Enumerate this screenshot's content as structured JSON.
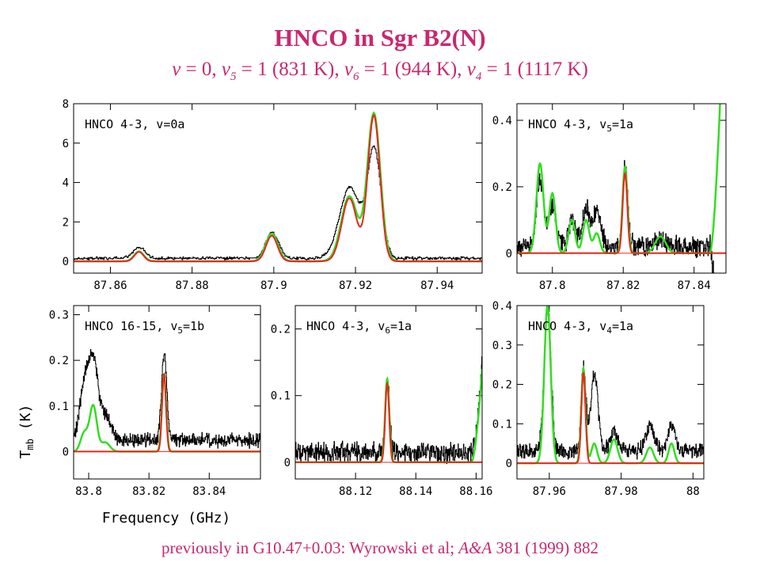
{
  "header": {
    "title": "HNCO in Sgr B2(N)",
    "subtitle": {
      "v": "v",
      "v0": " = 0, ",
      "sub5": "5",
      "t5": " = 1 (831 K), ",
      "sub6": "6",
      "t6": " = 1 (944 K), ",
      "sub4": "4",
      "t4": " = 1 (1117 K)"
    }
  },
  "footer": {
    "pre": "previously in G10.47+0.03: Wyrowski et al; ",
    "journal": "A&A",
    "post": " 381 (1999) 882"
  },
  "figure": {
    "ylabel_main": "T",
    "ylabel_sub": "mb",
    "ylabel_unit": " (K)",
    "xlabel": "Frequency (GHz)"
  },
  "colors": {
    "observed": "#000000",
    "model_total": "#33dd22",
    "model_component": "#e8261c",
    "text": "#c8286e"
  },
  "chart_data": [
    {
      "id": "p1",
      "type": "line",
      "label": "HNCO 4-3, v=0a",
      "xlim": [
        87.851,
        87.951
      ],
      "ylim": [
        -0.6,
        8
      ],
      "xticks": [
        87.86,
        87.88,
        87.9,
        87.92,
        87.94
      ],
      "xticklabels": [
        "87.86",
        "87.88",
        "87.9",
        "87.92",
        "87.94"
      ],
      "yticks": [
        0,
        2,
        4,
        6,
        8
      ],
      "yticklabels": [
        "0",
        "2",
        "4",
        "6",
        "8"
      ],
      "zeroline": false,
      "noise": 0.06,
      "lines": [
        {
          "center": 87.867,
          "width": 0.0012,
          "obs": 0.55,
          "total": 0.5,
          "comp": 0.48
        },
        {
          "center": 87.8995,
          "width": 0.0015,
          "obs": 1.3,
          "total": 1.4,
          "comp": 1.3
        },
        {
          "center": 87.9185,
          "width": 0.002,
          "obs": 3.6,
          "total": 3.3,
          "comp": 3.2
        },
        {
          "center": 87.9245,
          "width": 0.0016,
          "obs": 5.5,
          "total": 7.5,
          "comp": 7.4
        }
      ],
      "obs_baseline": 0.15
    },
    {
      "id": "p2",
      "type": "line",
      "label": "HNCO 4-3, v5=1a",
      "xlim": [
        87.79,
        87.849
      ],
      "ylim": [
        -0.06,
        0.45
      ],
      "xticks": [
        87.8,
        87.82,
        87.84
      ],
      "xticklabels": [
        "87.8",
        "87.82",
        "87.84"
      ],
      "yticks": [
        0,
        0.2,
        0.4
      ],
      "yticklabels": [
        "0",
        "0.2",
        "0.4"
      ],
      "zeroline": true,
      "noise": 0.025,
      "lines": [
        {
          "center": 87.7965,
          "width": 0.001,
          "obs": 0.2,
          "total": 0.27,
          "comp": 0
        },
        {
          "center": 87.8,
          "width": 0.0009,
          "obs": 0.12,
          "total": 0.18,
          "comp": 0
        },
        {
          "center": 87.8055,
          "width": 0.0009,
          "obs": 0.08,
          "total": 0.1,
          "comp": 0
        },
        {
          "center": 87.8095,
          "width": 0.0009,
          "obs": 0.11,
          "total": 0.1,
          "comp": 0
        },
        {
          "center": 87.8125,
          "width": 0.0009,
          "obs": 0.1,
          "total": 0.06,
          "comp": 0
        },
        {
          "center": 87.8205,
          "width": 0.0007,
          "obs": 0.24,
          "total": 0.26,
          "comp": 0.24
        },
        {
          "center": 87.8305,
          "width": 0.0015,
          "obs": 0.02,
          "total": 0.05,
          "comp": 0
        }
      ],
      "rise": {
        "x0": 87.8445,
        "total_to": 0.95,
        "obs_dip": -0.12
      },
      "obs_baseline": 0.02
    },
    {
      "id": "p3",
      "type": "line",
      "label": "HNCO 16-15, v5=1b",
      "xlim": [
        83.795,
        83.857
      ],
      "ylim": [
        -0.06,
        0.32
      ],
      "xticks": [
        83.8,
        83.82,
        83.84
      ],
      "xticklabels": [
        "83.8",
        "83.82",
        "83.84"
      ],
      "yticks": [
        0,
        0.1,
        0.2,
        0.3
      ],
      "yticklabels": [
        "0",
        "0.1",
        "0.2",
        "0.3"
      ],
      "zeroline": true,
      "noise": 0.012,
      "lines": [
        {
          "center": 83.7985,
          "width": 0.0012,
          "obs": 0.12,
          "total": 0.04,
          "comp": 0
        },
        {
          "center": 83.8015,
          "width": 0.0012,
          "obs": 0.17,
          "total": 0.1,
          "comp": 0
        },
        {
          "center": 83.8055,
          "width": 0.0015,
          "obs": 0.05,
          "total": 0.02,
          "comp": 0
        },
        {
          "center": 83.825,
          "width": 0.0007,
          "obs": 0.19,
          "total": 0.17,
          "comp": 0.17
        }
      ],
      "obs_baseline": 0.025
    },
    {
      "id": "p4",
      "type": "line",
      "label": "HNCO 4-3, v6=1a",
      "xlim": [
        88.1,
        88.162
      ],
      "ylim": [
        -0.025,
        0.235
      ],
      "xticks": [
        88.12,
        88.14,
        88.16
      ],
      "xticklabels": [
        "88.12",
        "88.14",
        "88.16"
      ],
      "yticks": [
        0,
        0.1,
        0.2
      ],
      "yticklabels": [
        "0",
        "0.1",
        "0.2"
      ],
      "zeroline": true,
      "noise": 0.012,
      "lines": [
        {
          "center": 88.1305,
          "width": 0.0007,
          "obs": 0.11,
          "total": 0.125,
          "comp": 0.118
        }
      ],
      "rise": {
        "x0": 88.1585,
        "total_to": 0.14,
        "obs_dip": 0
      },
      "obs_baseline": 0.015
    },
    {
      "id": "p5",
      "type": "line",
      "label": "HNCO 4-3, v4=1a",
      "xlim": [
        87.951,
        88.003
      ],
      "ylim": [
        -0.04,
        0.4
      ],
      "xticks": [
        87.96,
        87.98,
        88
      ],
      "xticklabels": [
        "87.96",
        "87.98",
        "88"
      ],
      "yticks": [
        0,
        0.1,
        0.2,
        0.3,
        0.4
      ],
      "yticklabels": [
        "0",
        "0.1",
        "0.2",
        "0.3",
        "0.4"
      ],
      "zeroline": true,
      "noise": 0.015,
      "lines": [
        {
          "center": 87.9595,
          "width": 0.0009,
          "obs": 0.37,
          "total": 0.4,
          "comp": 0
        },
        {
          "center": 87.9695,
          "width": 0.0006,
          "obs": 0.22,
          "total": 0.24,
          "comp": 0.23
        },
        {
          "center": 87.9725,
          "width": 0.0008,
          "obs": 0.2,
          "total": 0.05,
          "comp": 0
        },
        {
          "center": 87.978,
          "width": 0.001,
          "obs": 0.05,
          "total": 0.06,
          "comp": 0
        },
        {
          "center": 87.988,
          "width": 0.001,
          "obs": 0.06,
          "total": 0.04,
          "comp": 0
        },
        {
          "center": 87.994,
          "width": 0.0008,
          "obs": 0.07,
          "total": 0.05,
          "comp": 0
        }
      ],
      "obs_baseline": 0.03
    }
  ]
}
